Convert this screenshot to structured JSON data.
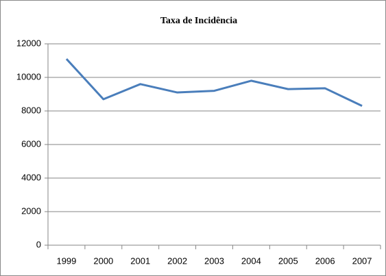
{
  "chart_data": {
    "type": "line",
    "title": "Taxa de Incidência",
    "categories": [
      "1999",
      "2000",
      "2001",
      "2002",
      "2003",
      "2004",
      "2005",
      "2006",
      "2007"
    ],
    "series": [
      {
        "name": "Taxa de Incidência",
        "color": "#4a7ebb",
        "values": [
          11100,
          8700,
          9600,
          9100,
          9200,
          9800,
          9300,
          9350,
          8300
        ]
      }
    ],
    "ylim": [
      0,
      12000
    ],
    "yticks": [
      0,
      2000,
      4000,
      6000,
      8000,
      10000,
      12000
    ],
    "grid": true
  }
}
